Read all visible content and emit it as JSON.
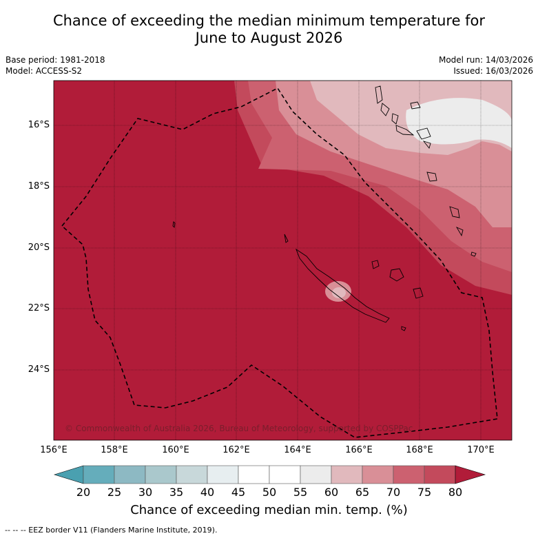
{
  "header": {
    "title_line1": "Chance of exceeding the median minimum temperature for",
    "title_line2": "June to August 2026",
    "base_period": "Base period: 1981-2018",
    "model": "Model: ACCESS-S2",
    "model_run": "Model run: 14/03/2026",
    "issued": "Issued: 16/03/2026"
  },
  "map": {
    "lon_ticks": [
      "156°E",
      "158°E",
      "160°E",
      "162°E",
      "164°E",
      "166°E",
      "168°E",
      "170°E"
    ],
    "lat_ticks": [
      "16°S",
      "18°S",
      "20°S",
      "22°S",
      "24°S"
    ],
    "copyright": "© Commonwealth of Australia 2026, Bureau of Meteorology, supported by COSPPac",
    "colors": {
      "ocean_high": "#b11c39",
      "band_75": "#c34a5c",
      "band_70": "#cc6170",
      "band_65": "#d98f97",
      "band_60": "#e1b9bd",
      "band_55": "#ececec"
    }
  },
  "colorbar": {
    "labels": [
      "20",
      "25",
      "30",
      "35",
      "40",
      "45",
      "50",
      "55",
      "60",
      "65",
      "70",
      "75",
      "80"
    ],
    "colors": [
      "#65adbb",
      "#8db9c3",
      "#aac8cc",
      "#c8d8da",
      "#e7eef0",
      "#ffffff",
      "#ffffff",
      "#ececec",
      "#e1b9bd",
      "#d98f97",
      "#cc6170",
      "#c34a5c"
    ],
    "under_color": "#4aa0b0",
    "over_color": "#b11c39",
    "title": "Chance of exceeding median min. temp. (%)"
  },
  "legend": {
    "footnote": "--  --  -- EEZ border V11 (Flanders Marine Institute, 2019)."
  }
}
